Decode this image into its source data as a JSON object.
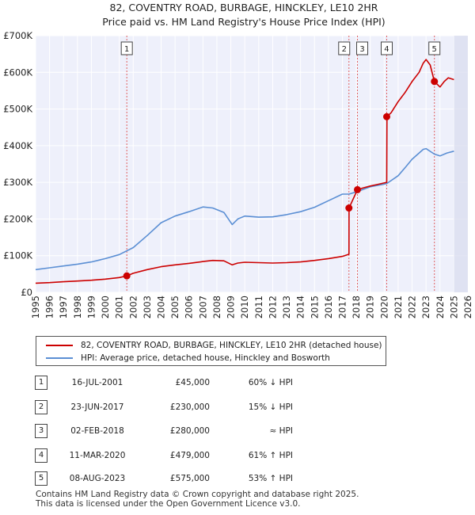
{
  "title_line1": "82, COVENTRY ROAD, BURBAGE, HINCKLEY, LE10 2HR",
  "title_line2": "Price paid vs. HM Land Registry's House Price Index (HPI)",
  "chart_data": {
    "type": "line",
    "title": "82, COVENTRY ROAD, BURBAGE, HINCKLEY, LE10 2HR — Price paid vs. HM Land Registry's House Price Index (HPI)",
    "xlim": [
      1995,
      2026
    ],
    "ylim": [
      0,
      700000
    ],
    "y_ticks": [
      {
        "value": 0,
        "label": "£0"
      },
      {
        "value": 100000,
        "label": "£100K"
      },
      {
        "value": 200000,
        "label": "£200K"
      },
      {
        "value": 300000,
        "label": "£300K"
      },
      {
        "value": 400000,
        "label": "£400K"
      },
      {
        "value": 500000,
        "label": "£500K"
      },
      {
        "value": 600000,
        "label": "£600K"
      },
      {
        "value": 700000,
        "label": "£700K"
      }
    ],
    "x_ticks": [
      "1995",
      "1996",
      "1997",
      "1998",
      "1999",
      "2000",
      "2001",
      "2002",
      "2003",
      "2004",
      "2005",
      "2006",
      "2007",
      "2008",
      "2009",
      "2010",
      "2011",
      "2012",
      "2013",
      "2014",
      "2015",
      "2016",
      "2017",
      "2018",
      "2019",
      "2020",
      "2021",
      "2022",
      "2023",
      "2024",
      "2025",
      "2026"
    ],
    "shaded_from": 2025.0,
    "series": [
      {
        "name": "82, COVENTRY ROAD, BURBAGE, HINCKLEY, LE10 2HR (detached house)",
        "color": "#cc0000",
        "x": [
          1995.0,
          1996.0,
          1997.0,
          1998.0,
          1999.0,
          2000.0,
          2001.0,
          2001.54,
          2002.0,
          2003.0,
          2004.0,
          2005.0,
          2006.0,
          2007.0,
          2007.7,
          2008.5,
          2009.1,
          2009.5,
          2010.0,
          2011.0,
          2012.0,
          2013.0,
          2014.0,
          2015.0,
          2016.0,
          2017.0,
          2017.47,
          2017.48,
          2018.08,
          2018.5,
          2019.0,
          2019.5,
          2020.18,
          2020.2,
          2020.5,
          2021.0,
          2021.5,
          2022.0,
          2022.5,
          2022.8,
          2023.0,
          2023.3,
          2023.6,
          2024.0,
          2024.3,
          2024.6,
          2025.0
        ],
        "y": [
          25000,
          26500,
          29000,
          31000,
          33000,
          36000,
          40500,
          45000,
          52000,
          62000,
          70000,
          75000,
          79000,
          84000,
          87000,
          86000,
          75000,
          80000,
          82000,
          81000,
          80000,
          81000,
          83000,
          87000,
          92000,
          98000,
          104000,
          230000,
          280000,
          285000,
          290000,
          294000,
          300000,
          479000,
          490000,
          520000,
          545000,
          575000,
          600000,
          625000,
          635000,
          620000,
          575000,
          560000,
          575000,
          585000,
          580000
        ]
      },
      {
        "name": "HPI: Average price, detached house, Hinckley and Bosworth",
        "color": "#5b8fd4",
        "x": [
          1995.0,
          1996.0,
          1997.0,
          1998.0,
          1999.0,
          2000.0,
          2001.0,
          2002.0,
          2003.0,
          2004.0,
          2005.0,
          2006.0,
          2007.0,
          2007.7,
          2008.5,
          2009.1,
          2009.5,
          2010.0,
          2011.0,
          2012.0,
          2013.0,
          2014.0,
          2015.0,
          2016.0,
          2017.0,
          2017.48,
          2018.08,
          2019.0,
          2020.0,
          2020.2,
          2021.0,
          2021.5,
          2022.0,
          2022.5,
          2022.8,
          2023.0,
          2023.6,
          2024.0,
          2024.5,
          2025.0
        ],
        "y": [
          62000,
          67000,
          72000,
          77000,
          83000,
          92000,
          103000,
          122000,
          155000,
          190000,
          208000,
          220000,
          233000,
          230000,
          218000,
          185000,
          200000,
          208000,
          205000,
          206000,
          212000,
          220000,
          232000,
          250000,
          268000,
          268000,
          275000,
          288000,
          295000,
          297000,
          318000,
          340000,
          363000,
          380000,
          390000,
          392000,
          377000,
          372000,
          380000,
          385000
        ]
      }
    ],
    "sales": [
      {
        "num": "1",
        "x": 2001.54,
        "y": 45000
      },
      {
        "num": "2",
        "x": 2017.47,
        "y": 230000
      },
      {
        "num": "3",
        "x": 2018.08,
        "y": 280000
      },
      {
        "num": "4",
        "x": 2020.18,
        "y": 479000
      },
      {
        "num": "5",
        "x": 2023.6,
        "y": 575000
      }
    ]
  },
  "legend": {
    "property_label": "82, COVENTRY ROAD, BURBAGE, HINCKLEY, LE10 2HR (detached house)",
    "hpi_label": "HPI: Average price, detached house, Hinckley and Bosworth",
    "property_color": "#cc0000",
    "hpi_color": "#5b8fd4"
  },
  "transactions": [
    {
      "num": "1",
      "date": "16-JUL-2001",
      "price": "£45,000",
      "hpi": "60% ↓ HPI"
    },
    {
      "num": "2",
      "date": "23-JUN-2017",
      "price": "£230,000",
      "hpi": "15% ↓ HPI"
    },
    {
      "num": "3",
      "date": "02-FEB-2018",
      "price": "£280,000",
      "hpi": "≈ HPI"
    },
    {
      "num": "4",
      "date": "11-MAR-2020",
      "price": "£479,000",
      "hpi": "61% ↑ HPI"
    },
    {
      "num": "5",
      "date": "08-AUG-2023",
      "price": "£575,000",
      "hpi": "53% ↑ HPI"
    }
  ],
  "footer": {
    "line1": "Contains HM Land Registry data © Crown copyright and database right 2025.",
    "line2": "This data is licensed under the Open Government Licence v3.0."
  }
}
